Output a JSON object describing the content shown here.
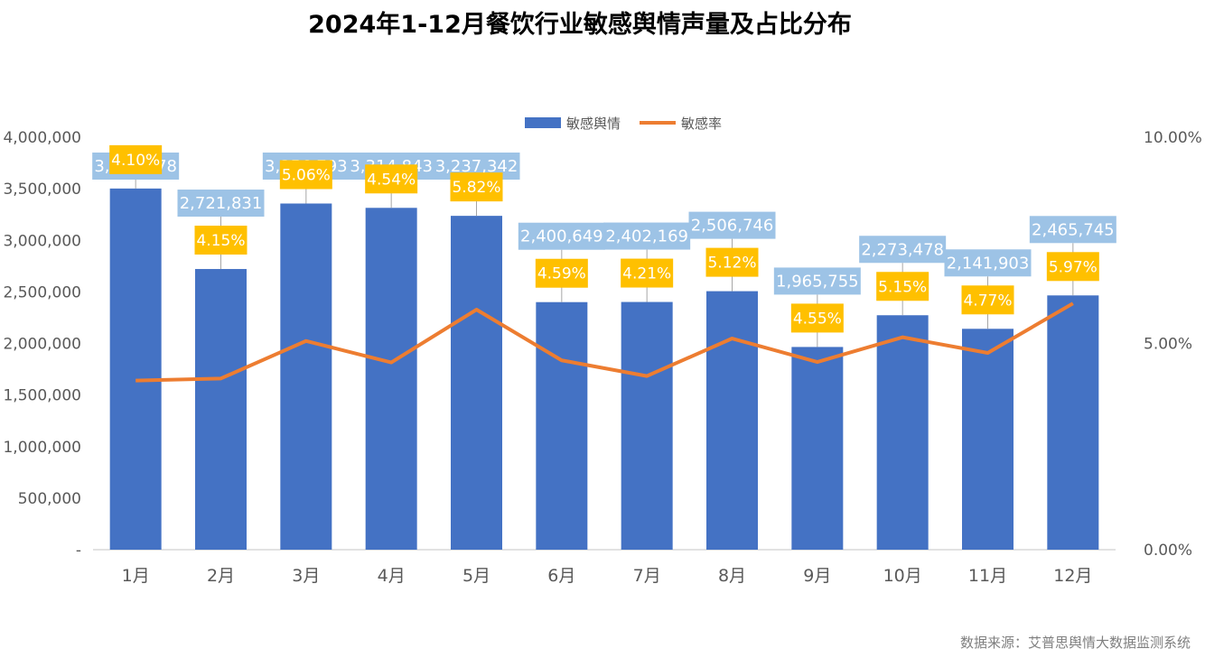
{
  "chart_data": {
    "type": "bar",
    "title": "2024年1-12月餐饮行业敏感舆情声量及占比分布",
    "categories": [
      "1月",
      "2月",
      "3月",
      "4月",
      "5月",
      "6月",
      "7月",
      "8月",
      "9月",
      "10月",
      "11月",
      "12月"
    ],
    "series": [
      {
        "name": "敏感舆情",
        "type": "bar",
        "axis": "left",
        "color": "#4472C4",
        "values": [
          3502278,
          2721831,
          3356793,
          3314843,
          3237342,
          2400649,
          2402169,
          2506746,
          1965755,
          2273478,
          2141903,
          2465745
        ],
        "labels": [
          "3,502,278",
          "2,721,831",
          "3,356,793",
          "3,314,843",
          "3,237,342",
          "2,400,649",
          "2,402,169",
          "2,506,746",
          "1,965,755",
          "2,273,478",
          "2,141,903",
          "2,465,745"
        ]
      },
      {
        "name": "敏感率",
        "type": "line",
        "axis": "right",
        "color": "#ED7D31",
        "values": [
          4.1,
          4.15,
          5.06,
          4.54,
          5.82,
          4.59,
          4.21,
          5.12,
          4.55,
          5.15,
          4.77,
          5.97
        ],
        "labels": [
          "4.10%",
          "4.15%",
          "5.06%",
          "4.54%",
          "5.82%",
          "4.59%",
          "4.21%",
          "5.12%",
          "4.55%",
          "5.15%",
          "4.77%",
          "5.97%"
        ]
      }
    ],
    "ylim": [
      0,
      4000000
    ],
    "y2lim": [
      0,
      10
    ],
    "yticks": [
      "-",
      "500,000",
      "1,000,000",
      "1,500,000",
      "2,000,000",
      "2,500,000",
      "3,000,000",
      "3,500,000",
      "4,000,000"
    ],
    "y2ticks": [
      "0.00%",
      "5.00%",
      "10.00%"
    ],
    "legend_position": "top-center",
    "grid": false,
    "bar_label_bg": "#9DC3E6",
    "rate_label_bg": "#FFC000"
  },
  "source_text": "数据来源：艾普思舆情大数据监测系统"
}
